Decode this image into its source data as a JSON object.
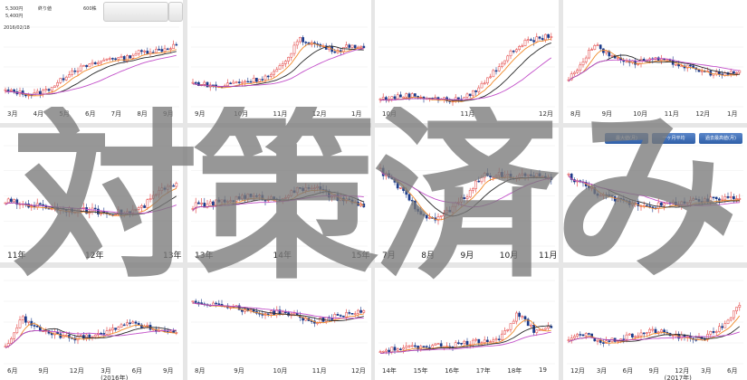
{
  "tiles": [
    {
      "id": "r1c1",
      "header": {
        "price1": "5,300円",
        "tag1": "終り値",
        "price2": "5,400円",
        "tag2": "600株",
        "date": "2016/02/18"
      },
      "xlabels": [
        "3月",
        "4月",
        "5月",
        "6月",
        "7月",
        "8月",
        "9月"
      ]
    },
    {
      "id": "r1c2",
      "xlabels": [
        "9月",
        "10月",
        "11月",
        "12月",
        "1月"
      ]
    },
    {
      "id": "r1c3",
      "xlabels": [
        "10月",
        "11月",
        "12月"
      ]
    },
    {
      "id": "r1c4",
      "xlabels": [
        "8月",
        "9月",
        "10月",
        "11月",
        "12月",
        "1月"
      ]
    },
    {
      "id": "r2c1",
      "xlabels": [
        "11年",
        "12年",
        "13年"
      ]
    },
    {
      "id": "r2c2",
      "xlabels": [
        "13年",
        "14年",
        "15年"
      ]
    },
    {
      "id": "r2c3",
      "xlabels": [
        "7月",
        "8月",
        "9月",
        "10月",
        "11月"
      ]
    },
    {
      "id": "r2c4",
      "tabs": [
        "最大値(月)",
        "一ヶ月平均",
        "過去最高値(月)"
      ],
      "xlabels": []
    },
    {
      "id": "r3c1",
      "xlabels": [
        "6月",
        "9月",
        "12月",
        "3月",
        "6月",
        "9月"
      ],
      "sub": "(2016年)"
    },
    {
      "id": "r3c2",
      "xlabels": [
        "8月",
        "9月",
        "10月",
        "11月",
        "12月"
      ]
    },
    {
      "id": "r3c3",
      "xlabels": [
        "14年",
        "15年",
        "16年",
        "17年",
        "18年",
        "19"
      ]
    },
    {
      "id": "r3c4",
      "xlabels": [
        "12月",
        "3月",
        "6月",
        "9月",
        "12月",
        "3月",
        "6月"
      ],
      "sub": "(2017年)"
    }
  ],
  "watermark": "対策済み",
  "colors": {
    "up": "#e23a3a",
    "down": "#1a3a8a",
    "ma1": "#f08a2a",
    "ma2": "#c24fc9",
    "ma3": "#2a2a2a",
    "grid": "#eeeeee"
  }
}
